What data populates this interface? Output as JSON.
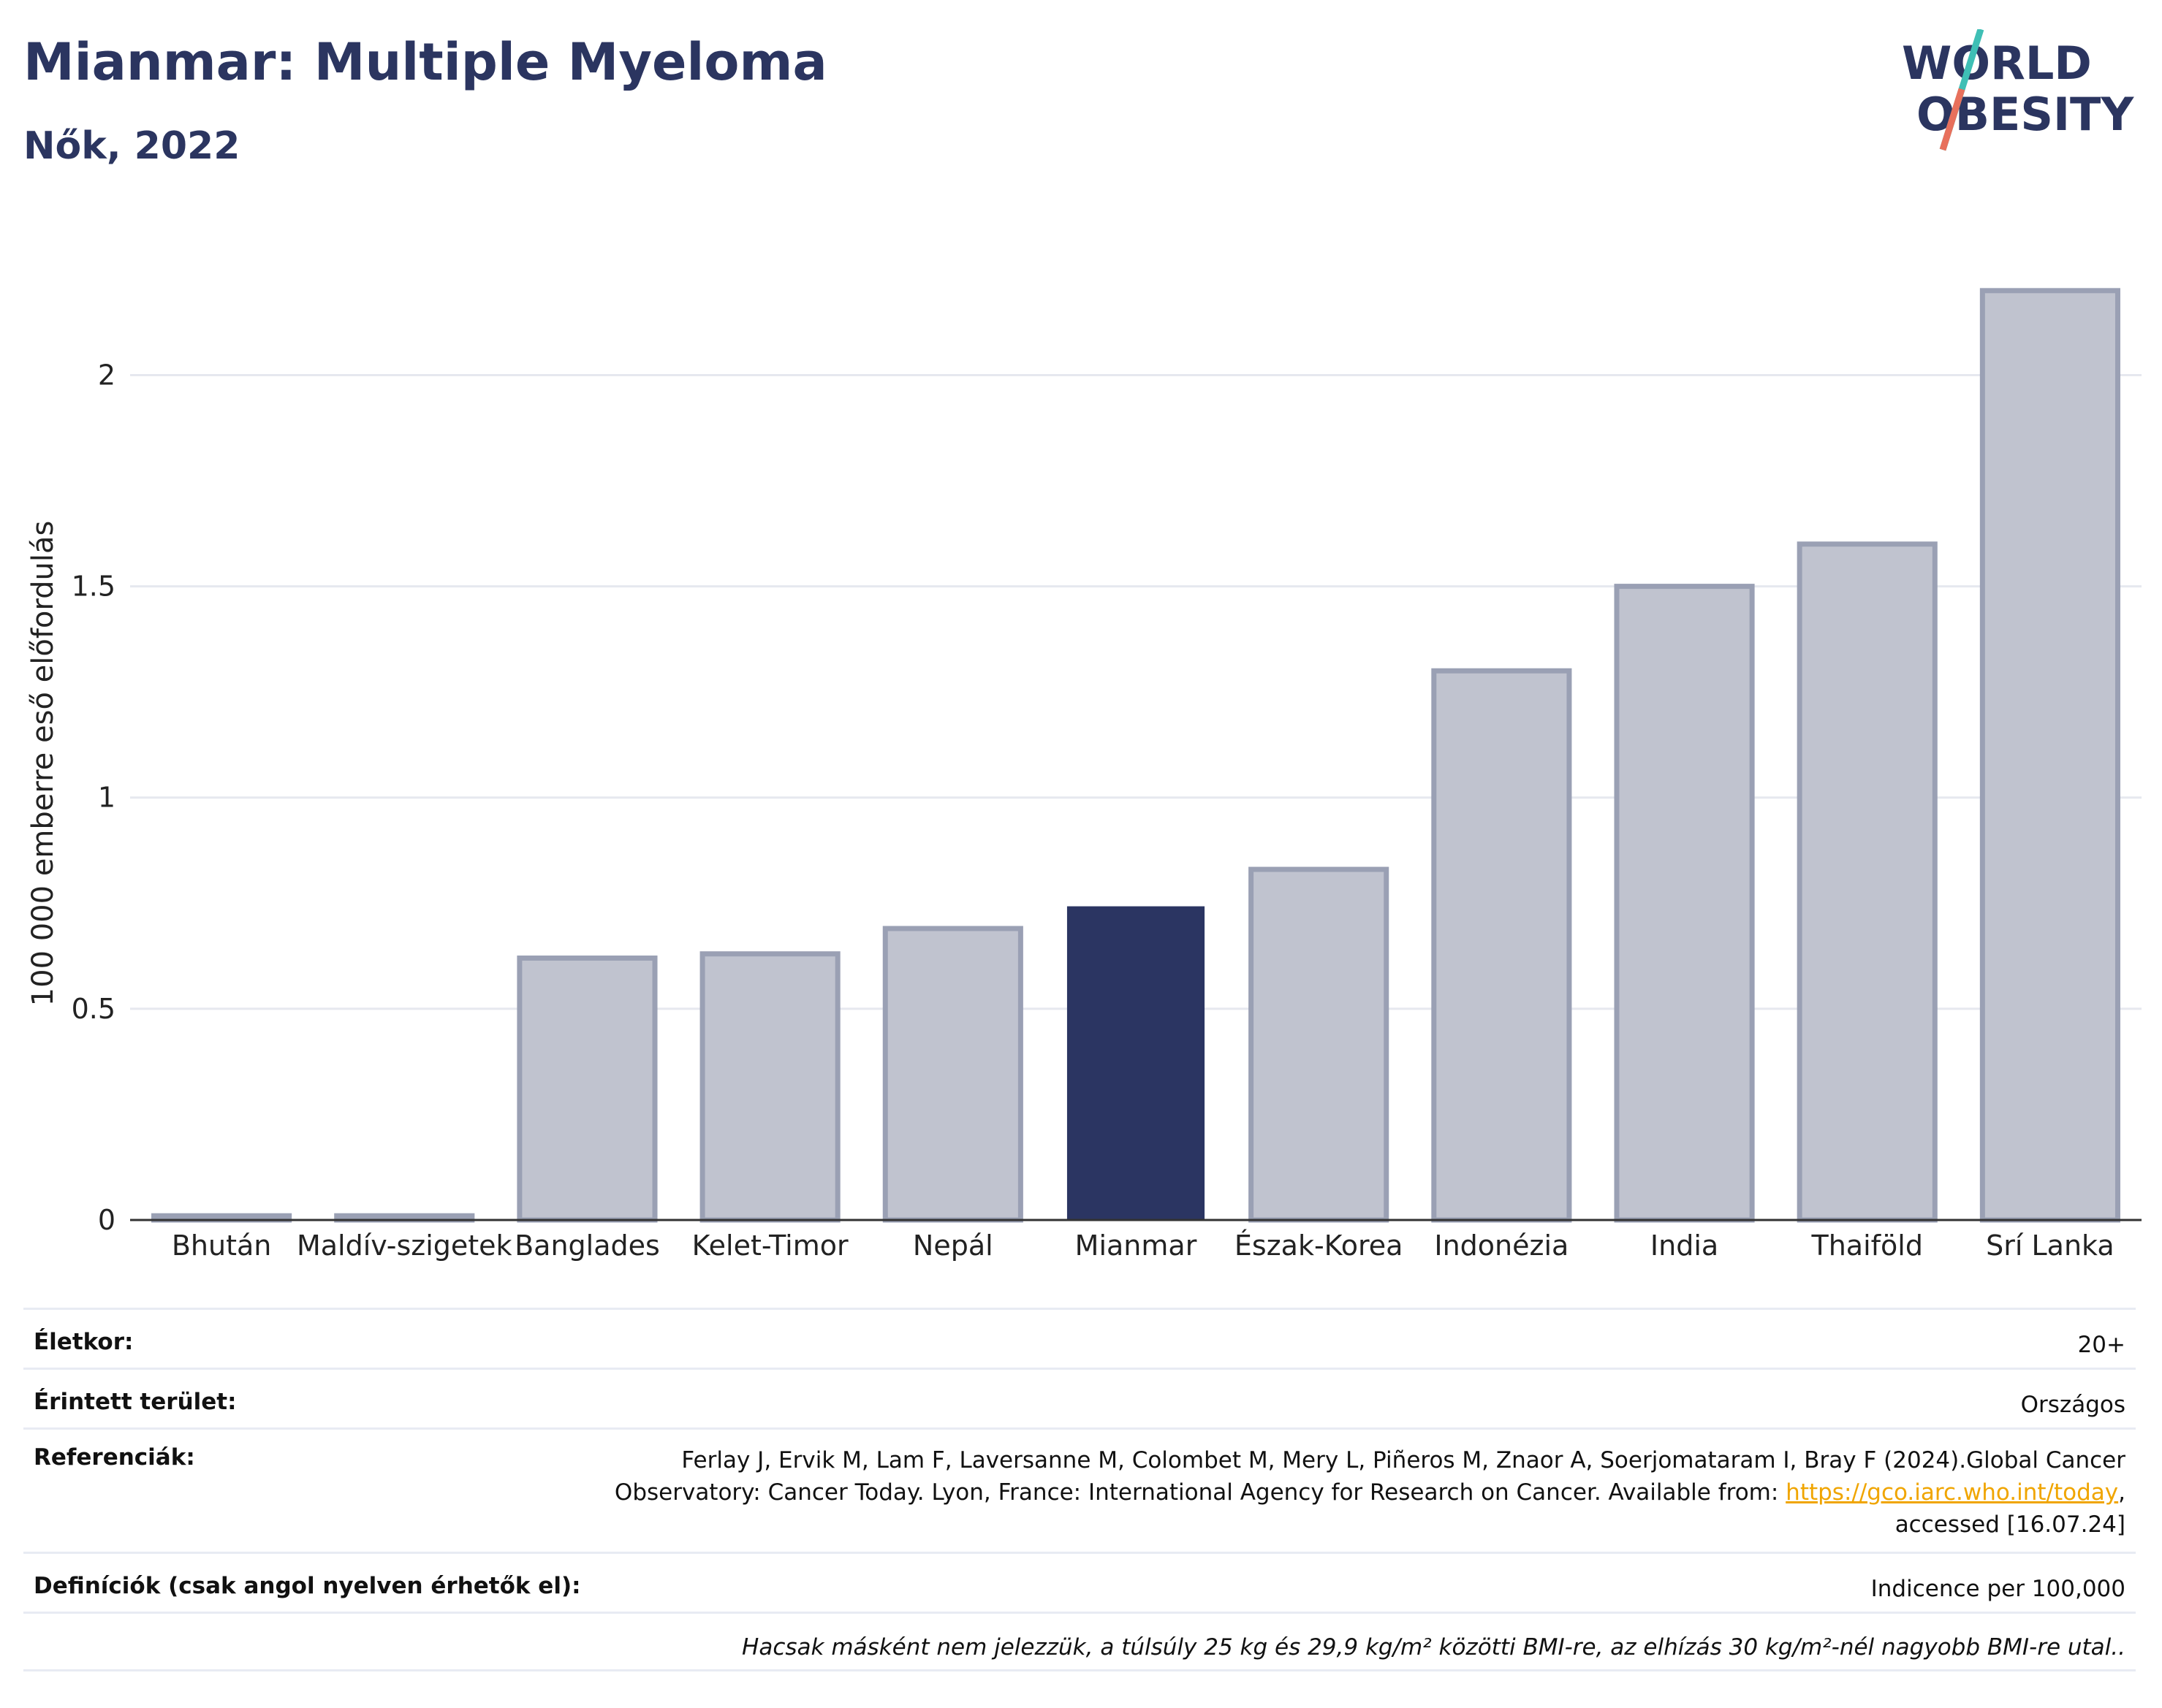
{
  "header": {
    "title": "Mianmar: Multiple Myeloma",
    "subtitle": "Nők, 2022"
  },
  "logo": {
    "line1": "WORLD",
    "line2": "OBESITY"
  },
  "chart_data": {
    "type": "bar",
    "title": "Mianmar: Multiple Myeloma",
    "subtitle": "Nők, 2022",
    "ylabel": "100 000 emberre eső előfordulás",
    "xlabel": "",
    "categories": [
      "Bhután",
      "Maldív-szigetek",
      "Banglades",
      "Kelet-Timor",
      "Nepál",
      "Mianmar",
      "Észak-Korea",
      "Indonézia",
      "India",
      "Thaiföld",
      "Srí Lanka"
    ],
    "values": [
      0.01,
      0.01,
      0.62,
      0.63,
      0.69,
      0.74,
      0.83,
      1.3,
      1.5,
      1.6,
      2.2
    ],
    "highlight": "Mianmar",
    "ylim": [
      0,
      2.3
    ],
    "yticks": [
      0,
      0.5,
      1,
      1.5,
      2
    ],
    "ytick_labels": [
      "0",
      "0.5",
      "1",
      "1.5",
      "2"
    ],
    "grid": true,
    "colors": {
      "bar": "#c0c3cf",
      "bar_edge": "#9aa0b4",
      "highlight": "#2b3562"
    }
  },
  "info": {
    "age_label": "Életkor:",
    "age_value": "20+",
    "area_label": "Érintett terület:",
    "area_value": "Országos",
    "ref_label": "Referenciák:",
    "ref_line1": "Ferlay J, Ervik M, Lam F, Laversanne M, Colombet M, Mery L, Piñeros M, Znaor A, Soerjomataram I, Bray F (2024).Global Cancer",
    "ref_line2": "Observatory: Cancer Today. Lyon, France: International Agency for Research on Cancer. Available from: ",
    "ref_link": "https://gco.iarc.who.int/today",
    "ref_line2_end": ",",
    "ref_line3": "accessed [16.07.24]",
    "def_label": "Definíciók (csak angol nyelven érhetők el):",
    "def_value": "Indicence per 100,000",
    "note": "Hacsak másként nem jelezzük, a túlsúly 25 kg és 29,9 kg/m² közötti BMI-re, az elhízás 30 kg/m²-nél nagyobb BMI-re utal.."
  }
}
